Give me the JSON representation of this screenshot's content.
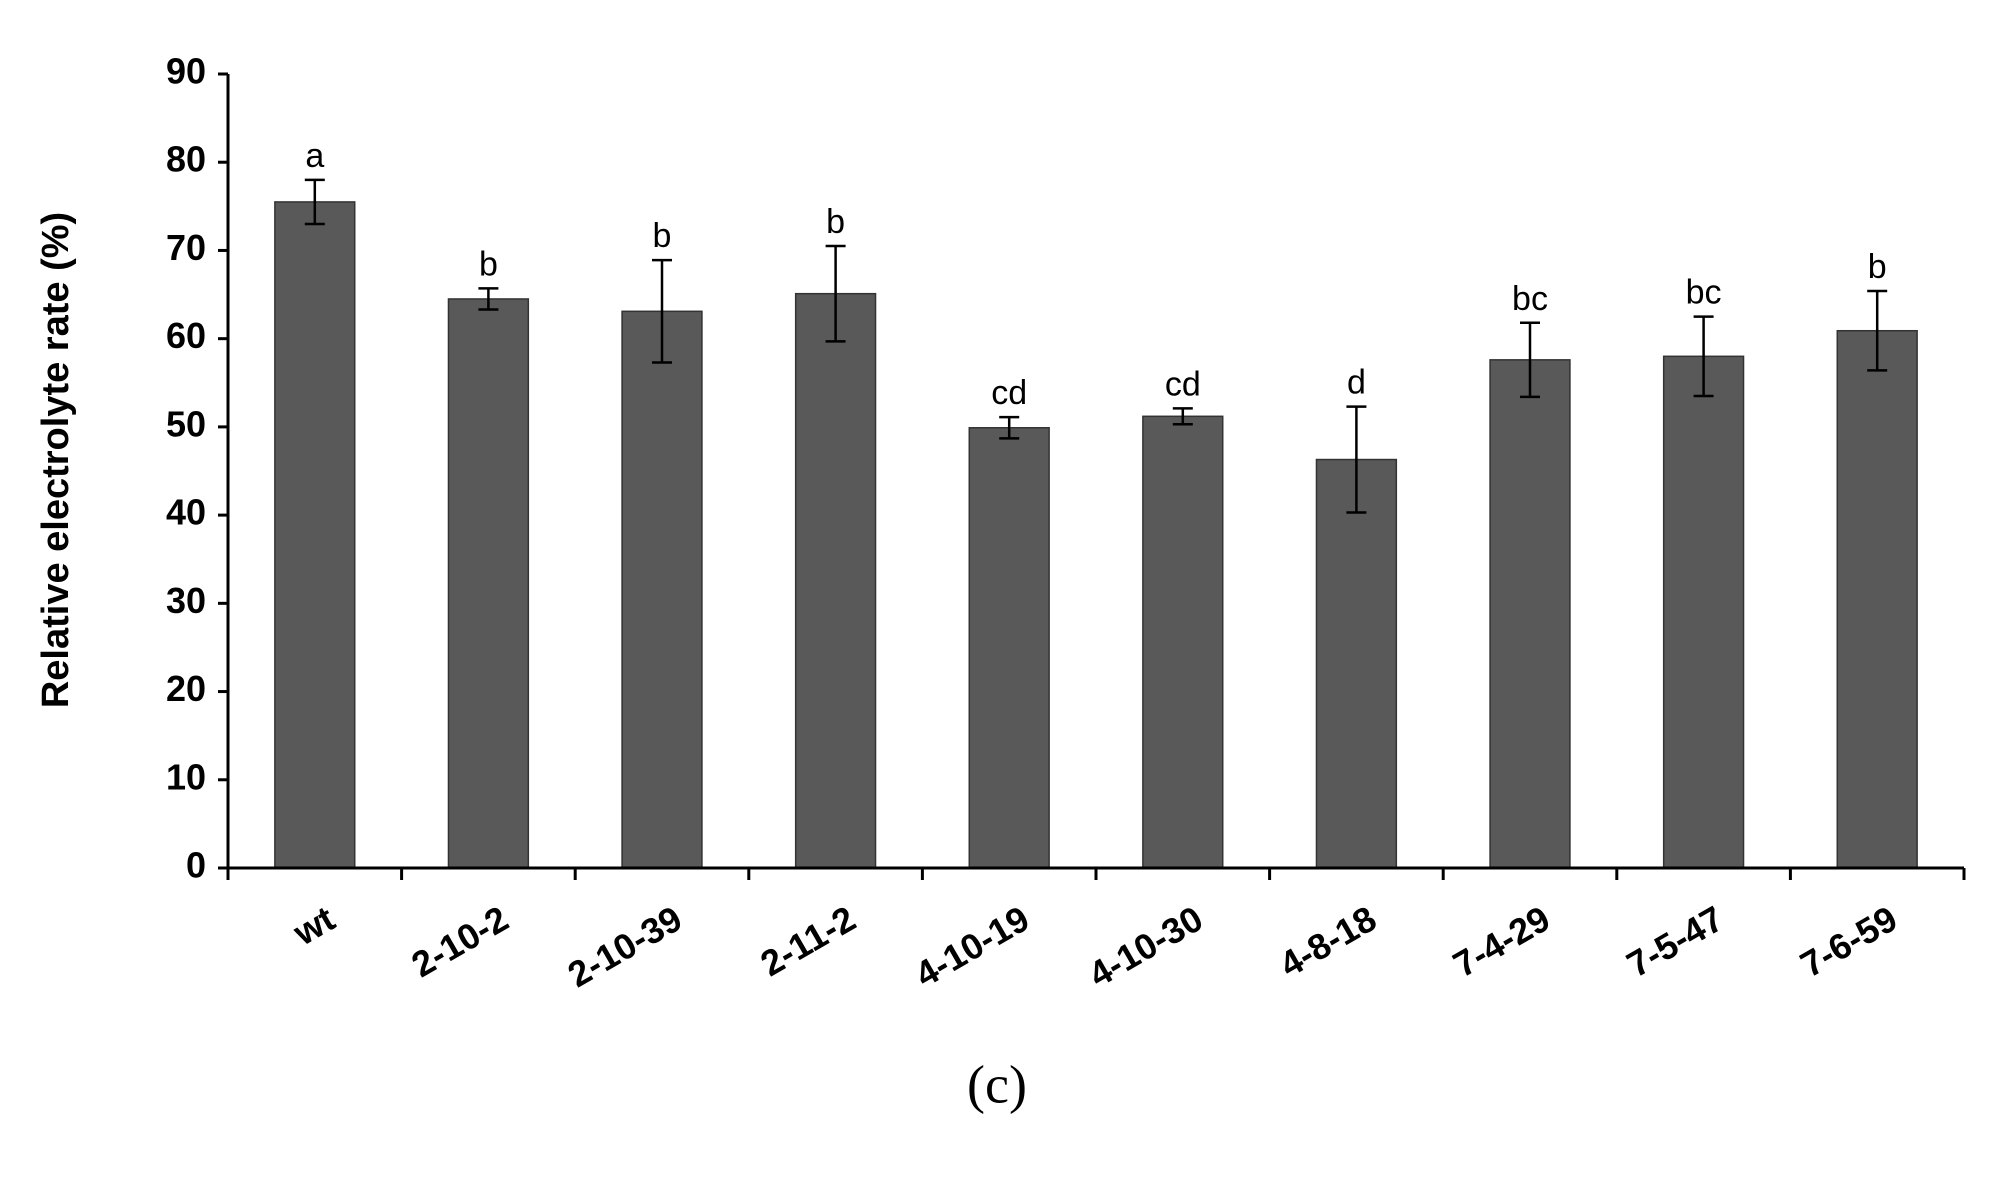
{
  "chart_data": {
    "type": "bar",
    "ylabel": "Relative electrolyte rate (%)",
    "caption": "(c)",
    "categories": [
      "wt",
      "2-10-2",
      "2-10-39",
      "2-11-2",
      "4-10-19",
      "4-10-30",
      "4-8-18",
      "7-4-29",
      "7-5-47",
      "7-6-59"
    ],
    "values": [
      75.5,
      64.5,
      63.1,
      65.1,
      49.9,
      51.2,
      46.3,
      57.6,
      58.0,
      60.9
    ],
    "errors": [
      2.5,
      1.2,
      5.8,
      5.4,
      1.2,
      0.9,
      6.0,
      4.2,
      4.5,
      4.5
    ],
    "letters": [
      "a",
      "b",
      "b",
      "b",
      "cd",
      "cd",
      "d",
      "bc",
      "bc",
      "b"
    ],
    "color": "#595959",
    "ylim": [
      0,
      90
    ],
    "yticks": [
      0,
      10,
      20,
      30,
      40,
      50,
      60,
      70,
      80,
      90
    ]
  }
}
